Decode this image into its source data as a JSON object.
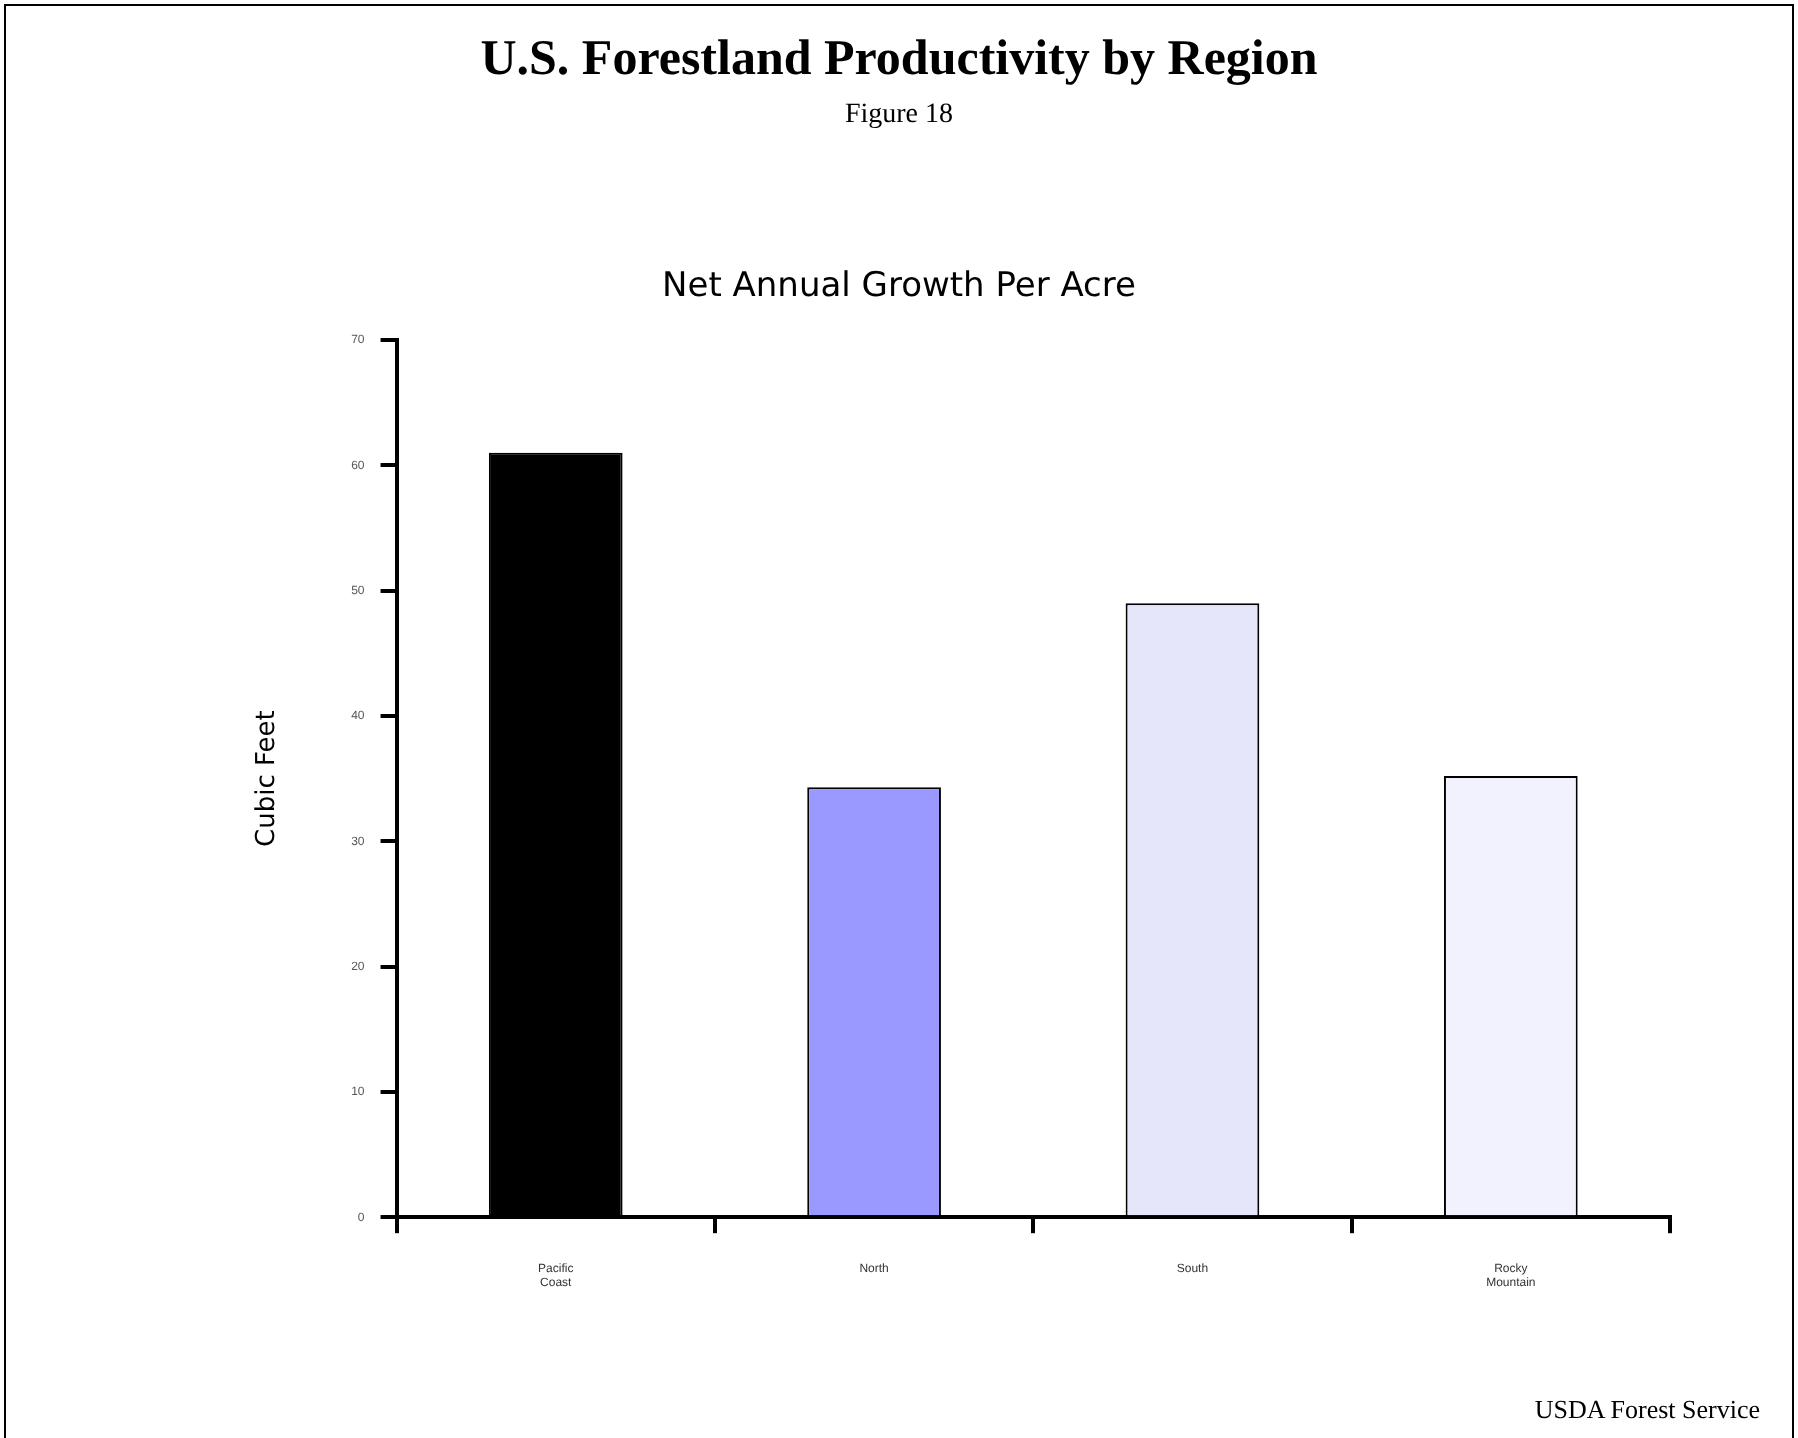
{
  "chart_data": {
    "type": "bar",
    "title": "U.S. Forestland Productivity by Region",
    "subtitle": "Figure 18",
    "annotations": [
      "Net Annual Growth Per Acre",
      "USDA Forest Service"
    ],
    "ylabel": "Cubic Feet",
    "categories": [
      "Pacific Coast",
      "North",
      "South",
      "Rocky Mountain"
    ],
    "values": [
      61,
      34.3,
      49,
      35.2
    ],
    "colors": [
      "#000000",
      "#9999ff",
      "#e6e6fa",
      "#f2f2ff"
    ],
    "ylim": [
      0,
      70
    ],
    "yticks": [
      0,
      10,
      20,
      30,
      40,
      50,
      60,
      70
    ],
    "grid": false,
    "legend": false
  }
}
